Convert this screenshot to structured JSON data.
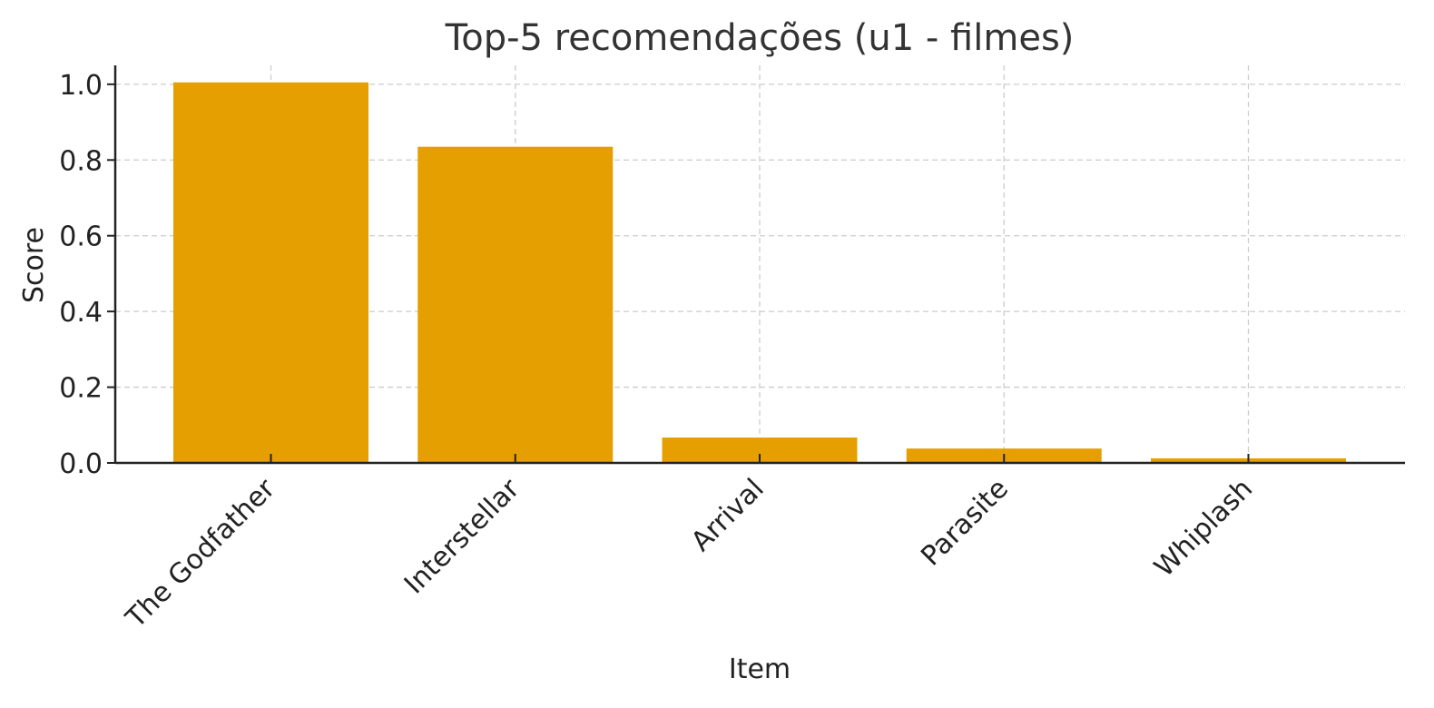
{
  "chart_data": {
    "type": "bar",
    "title": "Top-5 recomendações (u1 - filmes)",
    "xlabel": "Item",
    "ylabel": "Score",
    "categories": [
      "The Godfather",
      "Interstellar",
      "Arrival",
      "Parasite",
      "Whiplash"
    ],
    "values": [
      1.005,
      0.835,
      0.067,
      0.038,
      0.012
    ],
    "ylim": [
      0,
      1.05
    ],
    "yticks": [
      0.0,
      0.2,
      0.4,
      0.6,
      0.8,
      1.0
    ],
    "ytick_labels": [
      "0.0",
      "0.2",
      "0.4",
      "0.6",
      "0.8",
      "1.0"
    ],
    "grid": true,
    "bar_color": "#E69F00"
  }
}
